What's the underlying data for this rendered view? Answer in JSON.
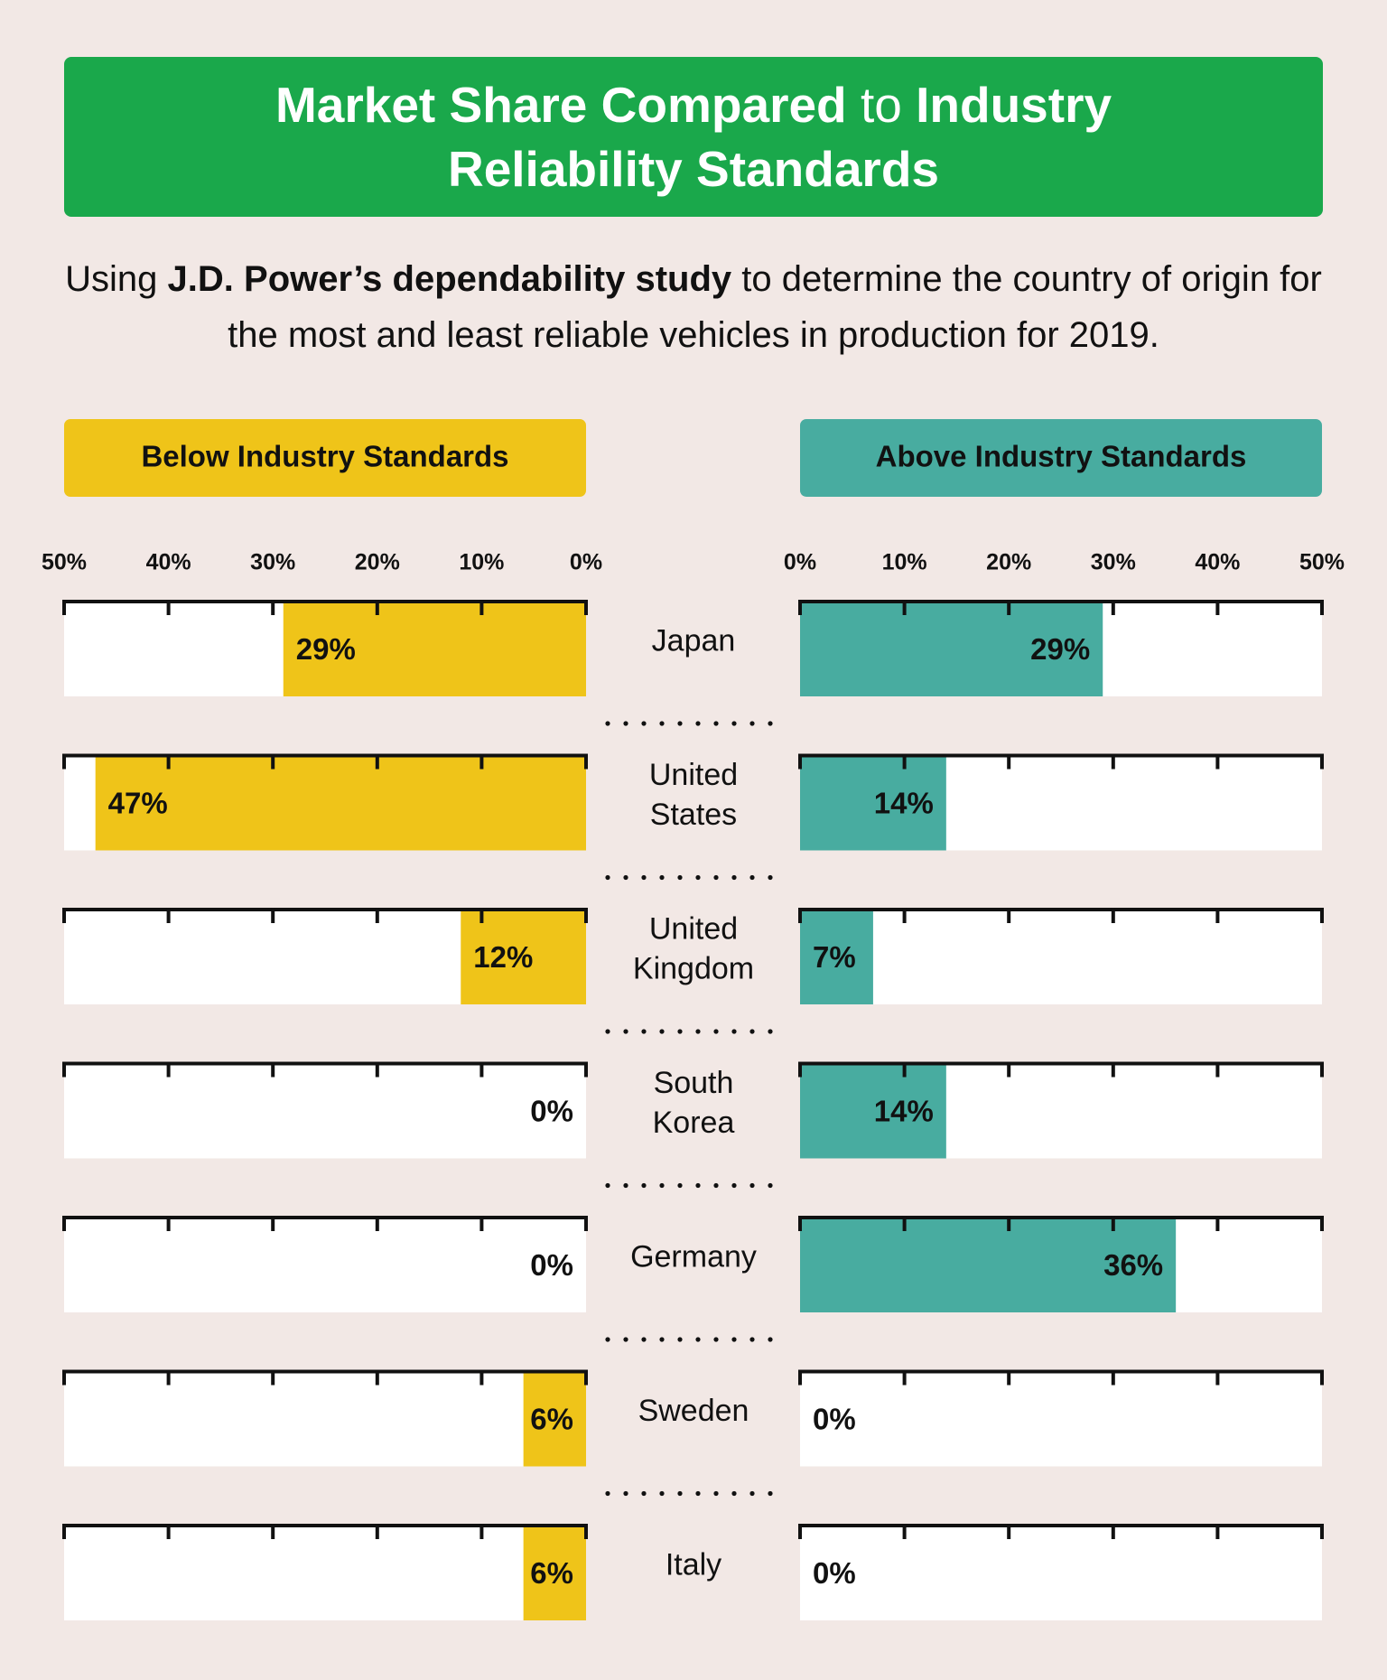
{
  "chart_data": {
    "type": "butterfly-bar",
    "title": [
      {
        "text": "Market Share Compared",
        "bold": true
      },
      {
        "text": "to",
        "bold": false
      },
      {
        "text": "Industry Reliability Standards",
        "bold": true
      }
    ],
    "subtitle": [
      {
        "text": "Using",
        "bold": false
      },
      {
        "text": "J.D. Power’s dependability study",
        "bold": true
      },
      {
        "text": "to determine the country of origin for the most and least reliable vehicles in production for 2019.",
        "bold": false
      }
    ],
    "categories": [
      "Japan",
      "United States",
      "United Kingdom",
      "South Korea",
      "Germany",
      "Sweden",
      "Italy"
    ],
    "series": [
      {
        "name": "Below Industry Standards",
        "color": "#efc419",
        "values": [
          29,
          47,
          12,
          0,
          0,
          6,
          6
        ],
        "value_labels": [
          "29%",
          "47%",
          "12%",
          "0%",
          "0%",
          "6%",
          "6%"
        ]
      },
      {
        "name": "Above Industry Standards",
        "color": "#48aca0",
        "values": [
          29,
          14,
          7,
          14,
          36,
          0,
          0
        ],
        "value_labels": [
          "29%",
          "14%",
          "7%",
          "14%",
          "36%",
          "0%",
          "0%"
        ]
      }
    ],
    "xlim": [
      0,
      50
    ],
    "xticks": [
      {
        "value": 0,
        "label": "0%"
      },
      {
        "value": 10,
        "label": "10%"
      },
      {
        "value": 20,
        "label": "20%"
      },
      {
        "value": 30,
        "label": "30%"
      },
      {
        "value": 40,
        "label": "40%"
      },
      {
        "value": 50,
        "label": "50%"
      }
    ]
  }
}
